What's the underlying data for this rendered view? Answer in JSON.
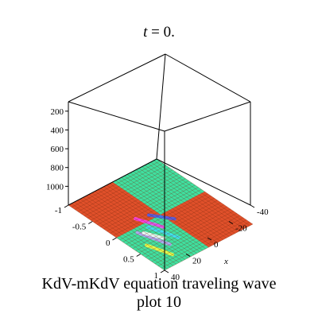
{
  "figure": {
    "title_var": "t",
    "title_rest": " = 0.",
    "caption_line1": "KdV-mKdV equation  traveling wave",
    "caption_line2": "plot 10"
  },
  "chart_data": {
    "type": "surface3d",
    "z_ticks": [
      "1000",
      "800",
      "600",
      "400",
      "200"
    ],
    "y_ticks": [
      "-1",
      "-0.5",
      "0",
      "0.5",
      "1"
    ],
    "x_ticks": [
      "-40",
      "-20",
      "0",
      "20",
      "40"
    ],
    "x_label": "x",
    "z_values": [
      200,
      400,
      600,
      800,
      1000
    ],
    "y_values": [
      -1,
      -0.5,
      0,
      0.5,
      1
    ],
    "x_values": [
      -40,
      -20,
      0,
      20,
      40
    ],
    "colors": {
      "surface_green": "#3fe0a0",
      "surface_red": "#e0502a",
      "grid_line": "#7a2a10",
      "box": "#000000"
    }
  }
}
